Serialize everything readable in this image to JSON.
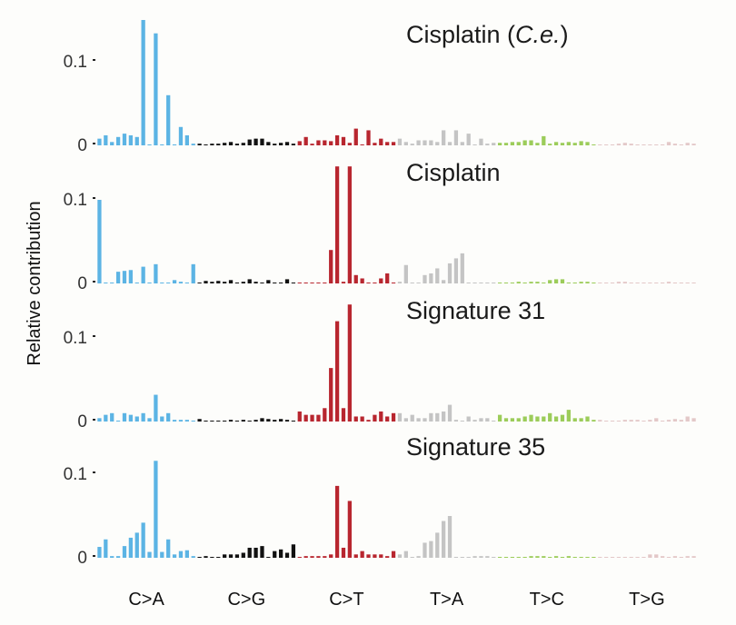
{
  "chart_data": {
    "type": "bar",
    "ylabel": "Relative contribution",
    "ylim": [
      0,
      0.15
    ],
    "yticks": [
      "0",
      "0.1"
    ],
    "ytick_values": [
      0,
      0.1
    ],
    "categories": [
      "C>A",
      "C>G",
      "C>T",
      "T>A",
      "T>C",
      "T>G"
    ],
    "colors": {
      "C>A": "#5cb4e4",
      "C>G": "#111111",
      "C>T": "#b8262f",
      "T>A": "#c4c4c4",
      "T>C": "#9ccc5a",
      "T>G": "#e3c8c8"
    },
    "panels": [
      {
        "title_parts": [
          {
            "text": "Cisplatin (",
            "italic": false
          },
          {
            "text": "C.e.",
            "italic": true
          },
          {
            "text": ")",
            "italic": false
          }
        ],
        "values": {
          "C>A": [
            0.008,
            0.012,
            0.004,
            0.01,
            0.014,
            0.012,
            0.01,
            0.15,
            0.001,
            0.134,
            0.001,
            0.06,
            0.001,
            0.022,
            0.012,
            0.002
          ],
          "C>G": [
            0.002,
            0.001,
            0.002,
            0.002,
            0.003,
            0.004,
            0.002,
            0.003,
            0.007,
            0.008,
            0.008,
            0.004,
            0.002,
            0.003,
            0.004,
            0.002
          ],
          "C>T": [
            0.005,
            0.01,
            0.002,
            0.006,
            0.006,
            0.005,
            0.012,
            0.01,
            0.003,
            0.02,
            0.001,
            0.018,
            0.003,
            0.008,
            0.004,
            0.004
          ],
          "T>A": [
            0.008,
            0.004,
            0.002,
            0.006,
            0.006,
            0.006,
            0.004,
            0.018,
            0.004,
            0.018,
            0.004,
            0.014,
            0.001,
            0.008,
            0.002,
            0.003
          ],
          "T>C": [
            0.003,
            0.003,
            0.004,
            0.004,
            0.006,
            0.006,
            0.003,
            0.011,
            0.002,
            0.004,
            0.003,
            0.004,
            0.003,
            0.005,
            0.004,
            0.001
          ],
          "T>G": [
            0.001,
            0.001,
            0.001,
            0.002,
            0.003,
            0.002,
            0.001,
            0.001,
            0.001,
            0.001,
            0.001,
            0.004,
            0.002,
            0.001,
            0.003,
            0.002
          ]
        }
      },
      {
        "title_parts": [
          {
            "text": "Cisplatin",
            "italic": false
          }
        ],
        "values": {
          "C>A": [
            0.1,
            0.001,
            0.001,
            0.014,
            0.015,
            0.016,
            0.001,
            0.02,
            0.001,
            0.023,
            0.001,
            0.001,
            0.004,
            0.002,
            0.001,
            0.023
          ],
          "C>G": [
            0.001,
            0.003,
            0.002,
            0.003,
            0.002,
            0.004,
            0.001,
            0.002,
            0.005,
            0.002,
            0.001,
            0.004,
            0.001,
            0.001,
            0.005,
            0.001
          ],
          "C>T": [
            0.001,
            0.001,
            0.001,
            0.001,
            0.001,
            0.04,
            0.14,
            0.002,
            0.14,
            0.01,
            0.006,
            0.001,
            0.001,
            0.006,
            0.012,
            0.001
          ],
          "T>A": [
            0.002,
            0.022,
            0.001,
            0.001,
            0.01,
            0.012,
            0.018,
            0.004,
            0.024,
            0.03,
            0.036,
            0.001,
            0.001,
            0.001,
            0.001,
            0.001
          ],
          "T>C": [
            0.001,
            0.001,
            0.001,
            0.002,
            0.001,
            0.002,
            0.002,
            0.001,
            0.004,
            0.005,
            0.005,
            0.001,
            0.001,
            0.002,
            0.002,
            0.001
          ],
          "T>G": [
            0.001,
            0.001,
            0.001,
            0.002,
            0.002,
            0.001,
            0.001,
            0.001,
            0.001,
            0.001,
            0.001,
            0.002,
            0.001,
            0.001,
            0.001,
            0.001
          ]
        }
      },
      {
        "title_parts": [
          {
            "text": "Signature 31",
            "italic": false
          }
        ],
        "values": {
          "C>A": [
            0.004,
            0.008,
            0.01,
            0.001,
            0.01,
            0.008,
            0.006,
            0.01,
            0.004,
            0.032,
            0.006,
            0.01,
            0.002,
            0.002,
            0.002,
            0.001
          ],
          "C>G": [
            0.003,
            0.001,
            0.001,
            0.001,
            0.001,
            0.002,
            0.001,
            0.002,
            0.001,
            0.002,
            0.004,
            0.003,
            0.002,
            0.003,
            0.002,
            0.001
          ],
          "C>T": [
            0.012,
            0.008,
            0.008,
            0.008,
            0.016,
            0.064,
            0.12,
            0.016,
            0.14,
            0.006,
            0.006,
            0.002,
            0.008,
            0.012,
            0.006,
            0.01
          ],
          "T>A": [
            0.01,
            0.004,
            0.008,
            0.004,
            0.004,
            0.01,
            0.01,
            0.012,
            0.02,
            0.002,
            0.001,
            0.006,
            0.002,
            0.004,
            0.004,
            0.001
          ],
          "T>C": [
            0.008,
            0.004,
            0.004,
            0.004,
            0.006,
            0.008,
            0.006,
            0.006,
            0.01,
            0.006,
            0.008,
            0.014,
            0.004,
            0.004,
            0.006,
            0.002
          ],
          "T>G": [
            0.002,
            0.001,
            0.001,
            0.001,
            0.002,
            0.002,
            0.002,
            0.001,
            0.002,
            0.004,
            0.001,
            0.002,
            0.003,
            0.002,
            0.006,
            0.004
          ]
        }
      },
      {
        "title_parts": [
          {
            "text": "Signature 35",
            "italic": false
          }
        ],
        "values": {
          "C>A": [
            0.013,
            0.022,
            0.002,
            0.002,
            0.014,
            0.024,
            0.03,
            0.042,
            0.007,
            0.116,
            0.007,
            0.022,
            0.004,
            0.008,
            0.009,
            0.002
          ],
          "C>G": [
            0.001,
            0.002,
            0.001,
            0.001,
            0.004,
            0.004,
            0.004,
            0.006,
            0.012,
            0.012,
            0.014,
            0.001,
            0.008,
            0.01,
            0.006,
            0.016
          ],
          "C>T": [
            0.001,
            0.002,
            0.002,
            0.002,
            0.002,
            0.004,
            0.086,
            0.012,
            0.068,
            0.004,
            0.008,
            0.004,
            0.004,
            0.004,
            0.002,
            0.008
          ],
          "T>A": [
            0.004,
            0.008,
            0.001,
            0.002,
            0.018,
            0.02,
            0.03,
            0.044,
            0.05,
            0.001,
            0.001,
            0.001,
            0.002,
            0.002,
            0.002,
            0.001
          ],
          "T>C": [
            0.001,
            0.001,
            0.001,
            0.001,
            0.001,
            0.002,
            0.002,
            0.002,
            0.001,
            0.002,
            0.001,
            0.002,
            0.001,
            0.001,
            0.001,
            0.001
          ],
          "T>G": [
            0.001,
            0.001,
            0.001,
            0.001,
            0.001,
            0.001,
            0.001,
            0.001,
            0.004,
            0.004,
            0.002,
            0.001,
            0.002,
            0.001,
            0.002,
            0.002
          ]
        }
      }
    ]
  }
}
